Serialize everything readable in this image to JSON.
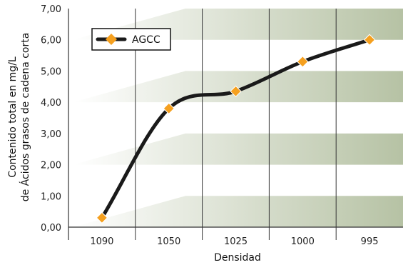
{
  "chart_data": {
    "type": "line",
    "categories": [
      "1090",
      "1050",
      "1025",
      "1000",
      "995"
    ],
    "series": [
      {
        "name": "AGCC",
        "values": [
          0.3,
          3.8,
          4.35,
          5.3,
          6.0
        ]
      }
    ],
    "xlabel": "Densidad",
    "ylabel_line1": "Contenido total en mg/L",
    "ylabel_line2": "de Ácidos grasos de cadena corta",
    "ylim": [
      0,
      7
    ],
    "y_ticks": [
      "0,00",
      "1,00",
      "2,00",
      "3,00",
      "4,00",
      "5,00",
      "6,00",
      "7,00"
    ],
    "legend_position": "top-left",
    "band_pairs": [
      [
        0,
        1
      ],
      [
        2,
        3
      ],
      [
        4,
        5
      ],
      [
        6,
        7
      ]
    ],
    "colors": {
      "line": "#1a1a1a",
      "marker": "#f5a01f",
      "band_light": "#ffffff",
      "band_dark": "#b6c2a4",
      "grid": "#333333"
    }
  }
}
